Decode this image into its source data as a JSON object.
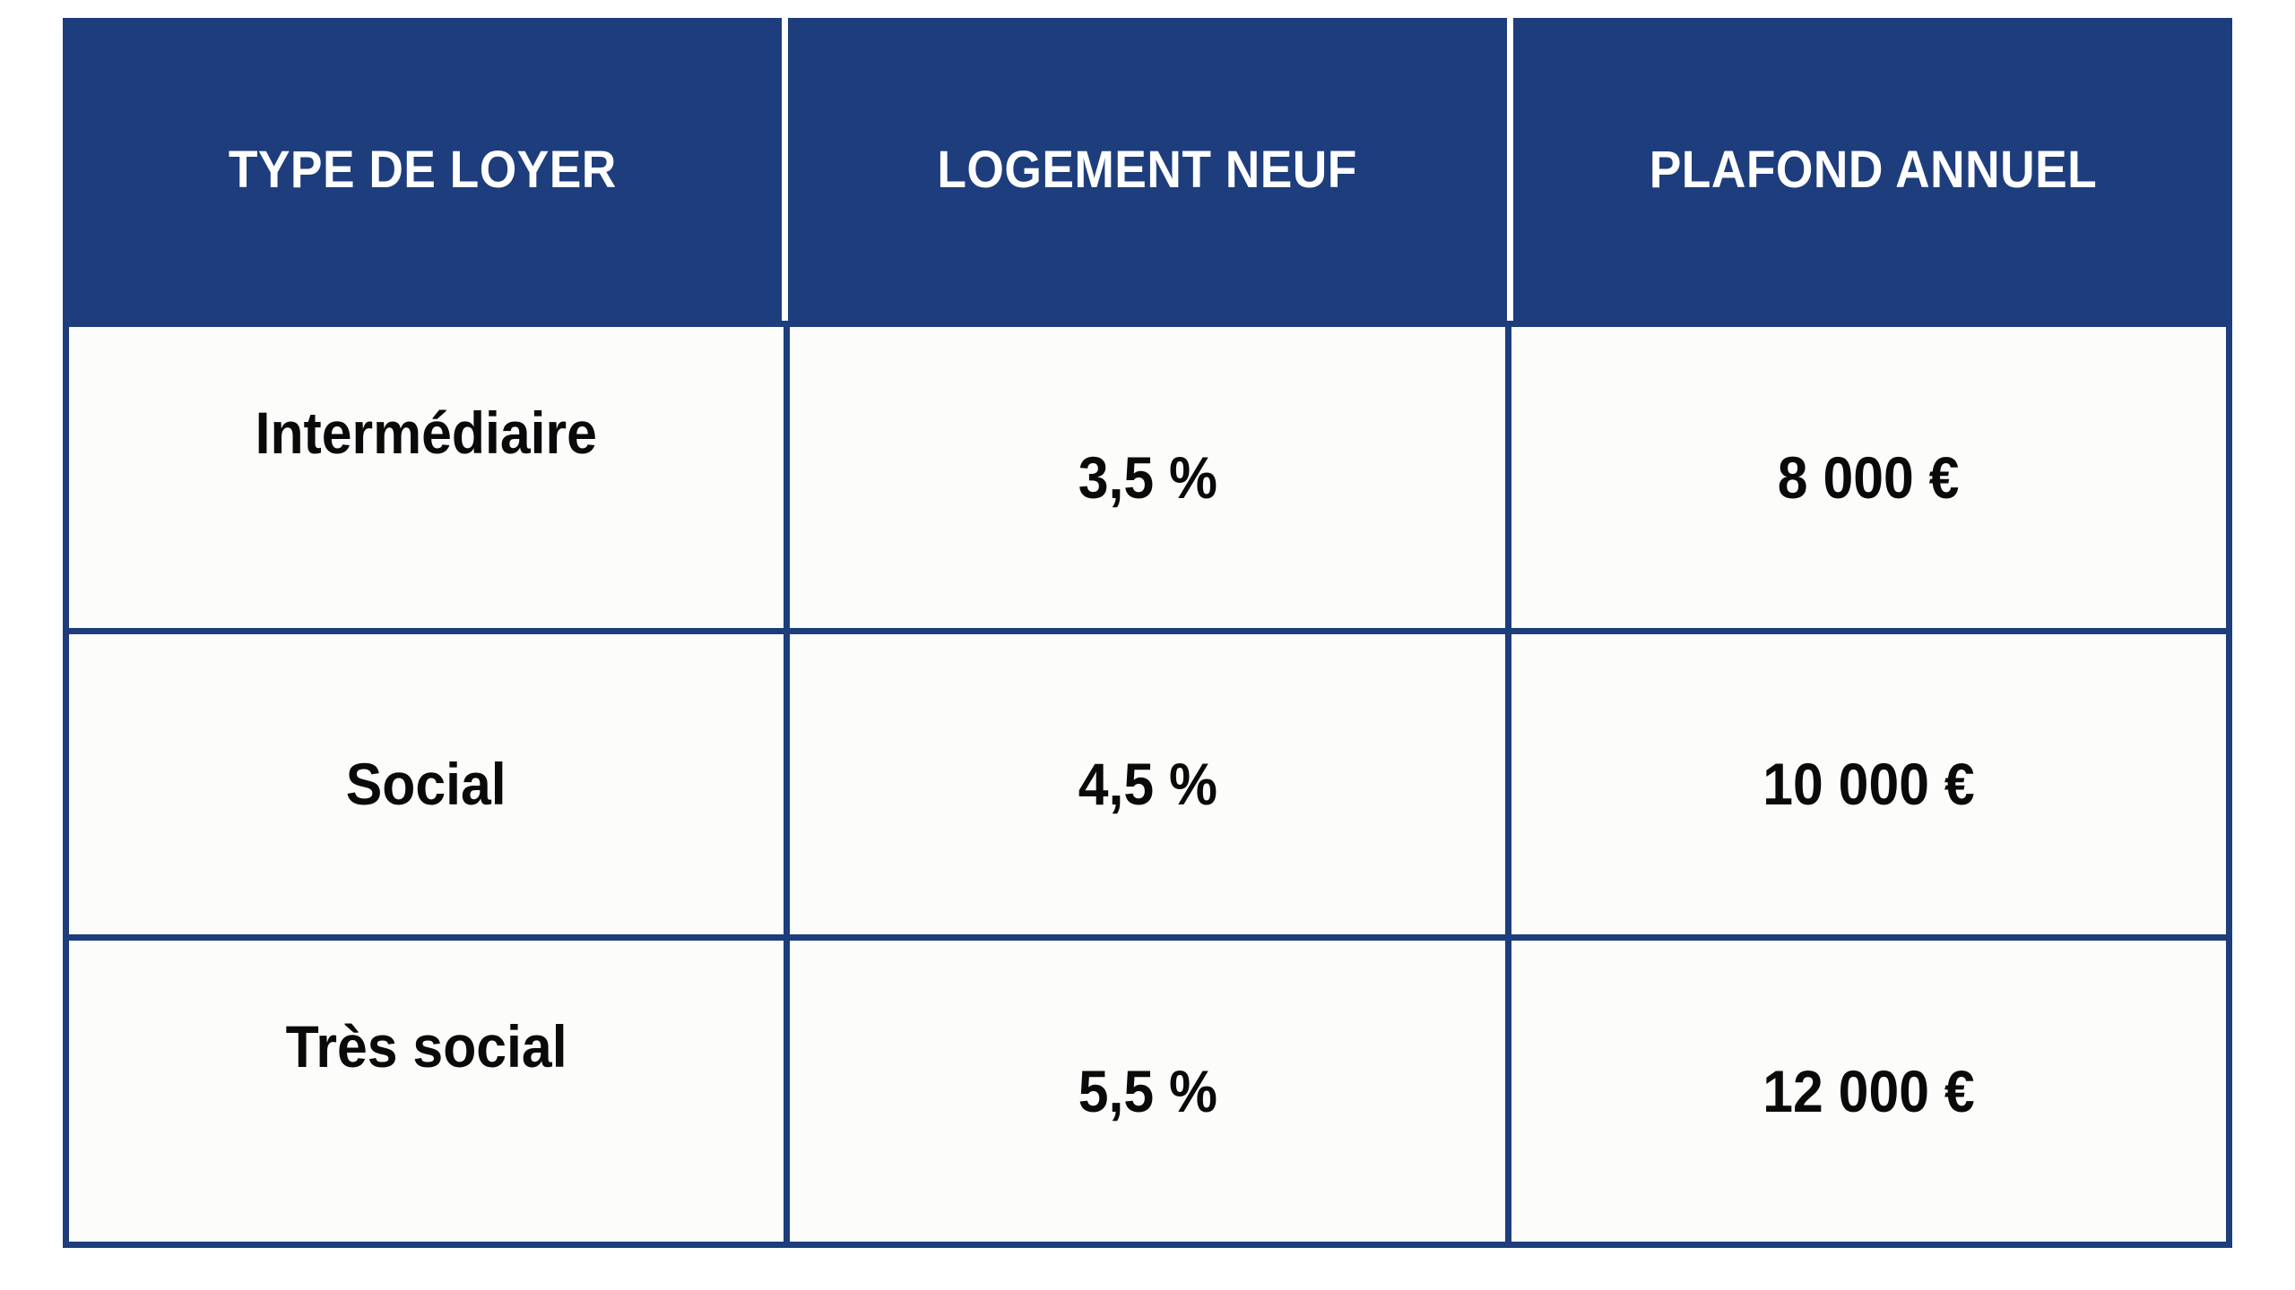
{
  "chart_data": {
    "type": "table",
    "columns": [
      "TYPE DE LOYER",
      "LOGEMENT NEUF",
      "PLAFOND ANNUEL"
    ],
    "rows": [
      [
        "Intermédiaire",
        "3,5 %",
        "8 000 €"
      ],
      [
        "Social",
        "4,5 %",
        "10 000 €"
      ],
      [
        "Très social",
        "5,5 %",
        "12 000 €"
      ]
    ]
  },
  "colors": {
    "header_bg": "#1D3D7C",
    "border": "#1D3D7C",
    "header_text": "#FFFFFF",
    "body_text": "#0A0A0A",
    "cell_bg": "#FCFCFA",
    "page_bg": "#FFFFFF"
  }
}
